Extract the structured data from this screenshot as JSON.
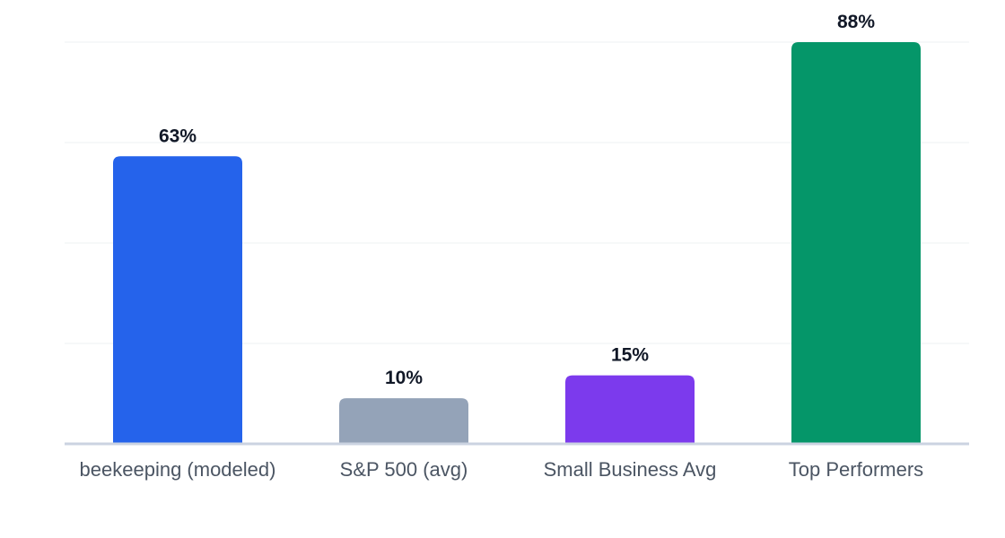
{
  "chart_data": {
    "type": "bar",
    "categories": [
      "beekeeping (modeled)",
      "S&P 500 (avg)",
      "Small Business Avg",
      "Top Performers"
    ],
    "values": [
      63,
      10,
      15,
      88
    ],
    "value_labels": [
      "63%",
      "10%",
      "15%",
      "88%"
    ],
    "colors": [
      "#2563eb",
      "#94a3b8",
      "#7c3aed",
      "#059669"
    ],
    "ylim": [
      0,
      88
    ],
    "grid": true,
    "legend": "none",
    "title": "",
    "xlabel": "",
    "ylabel": ""
  }
}
